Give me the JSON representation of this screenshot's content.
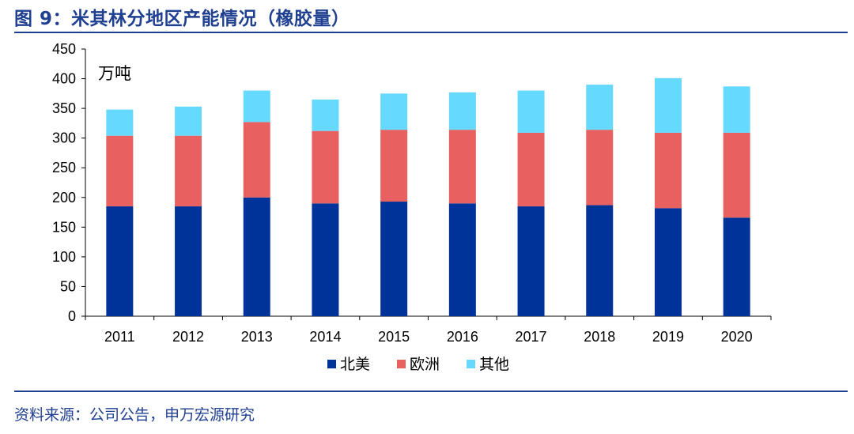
{
  "header": {
    "title": "图 9：米其林分地区产能情况（橡胶量）"
  },
  "footer": {
    "source": "资料来源：公司公告，申万宏源研究"
  },
  "colors": {
    "north_america": "#003399",
    "europe": "#e86060",
    "other": "#66d9ff",
    "rule": "#1f3f91"
  },
  "chart_data": {
    "type": "bar",
    "stacked": true,
    "title": "米其林分地区产能情况（橡胶量）",
    "unit_label": "万吨",
    "ylim": [
      0,
      450
    ],
    "yticks": [
      0,
      50,
      100,
      150,
      200,
      250,
      300,
      350,
      400,
      450
    ],
    "categories": [
      "2011",
      "2012",
      "2013",
      "2014",
      "2015",
      "2016",
      "2017",
      "2018",
      "2019",
      "2020"
    ],
    "series": [
      {
        "name": "北美",
        "color": "#003399",
        "values": [
          185,
          185,
          200,
          190,
          193,
          190,
          185,
          187,
          182,
          166
        ]
      },
      {
        "name": "欧洲",
        "color": "#e86060",
        "values": [
          119,
          119,
          127,
          122,
          121,
          124,
          124,
          127,
          127,
          143
        ]
      },
      {
        "name": "其他",
        "color": "#66d9ff",
        "values": [
          44,
          49,
          53,
          53,
          61,
          63,
          71,
          76,
          92,
          78
        ]
      }
    ],
    "legend_position": "bottom-center"
  }
}
